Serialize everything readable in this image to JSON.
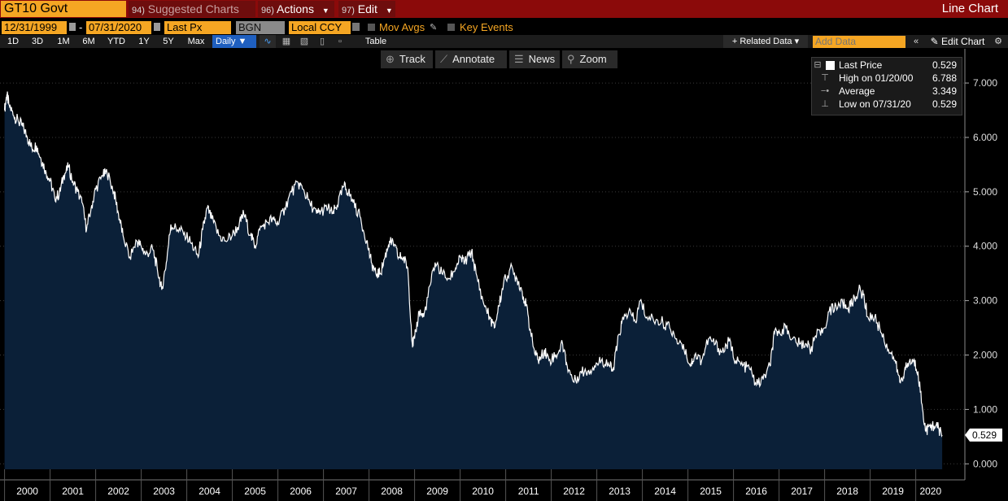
{
  "header": {
    "ticker": "GT10 Govt",
    "menus": [
      {
        "num": "94)",
        "label": "Suggested Charts",
        "dim": true
      },
      {
        "num": "96)",
        "label": "Actions"
      },
      {
        "num": "97)",
        "label": "Edit"
      }
    ],
    "chart_type": "Line Chart"
  },
  "controls": {
    "start_date": "12/31/1999",
    "end_date": "07/31/2020",
    "dash": "-",
    "field": "Last Px",
    "source": "BGN",
    "currency": "Local CCY",
    "mov_avgs": "Mov Avgs",
    "key_events": "Key Events"
  },
  "ranges": [
    "1D",
    "3D",
    "1M",
    "6M",
    "YTD",
    "1Y",
    "5Y",
    "Max"
  ],
  "periodicity": "Daily ▼",
  "table_label": "Table",
  "related_data": "+ Related Data ▾",
  "add_data_placeholder": "Add Data",
  "edit_chart": "Edit Chart",
  "toolbar": {
    "track": "Track",
    "annotate": "Annotate",
    "news": "News",
    "zoom": "Zoom"
  },
  "legend": {
    "last_label": "Last Price",
    "last_value": "0.529",
    "high_label": "High on 01/20/00",
    "high_value": "6.788",
    "avg_label": "Average",
    "avg_value": "3.349",
    "low_label": "Low on 07/31/20",
    "low_value": "0.529"
  },
  "colors": {
    "accent": "#f5a623",
    "title_bar": "#8b0a0a",
    "fill": "#0b2038",
    "line": "#ffffff",
    "background": "#000000"
  },
  "chart_data": {
    "type": "area",
    "title": "",
    "xlabel": "",
    "ylabel": "",
    "ylim": [
      -0.1,
      7.3
    ],
    "y_ticks": [
      "0.000",
      "1.000",
      "2.000",
      "3.000",
      "4.000",
      "5.000",
      "6.000",
      "7.000"
    ],
    "x_ticks": [
      "2000",
      "2001",
      "2002",
      "2003",
      "2004",
      "2005",
      "2006",
      "2007",
      "2008",
      "2009",
      "2010",
      "2011",
      "2012",
      "2013",
      "2014",
      "2015",
      "2016",
      "2017",
      "2018",
      "2019",
      "2020"
    ],
    "last_value_label": "0.529",
    "series": [
      {
        "values": [
          [
            2000.0,
            6.5
          ],
          [
            2000.05,
            6.788
          ],
          [
            2000.1,
            6.6
          ],
          [
            2000.2,
            6.4
          ],
          [
            2000.3,
            6.3
          ],
          [
            2000.4,
            6.2
          ],
          [
            2000.5,
            6.0
          ],
          [
            2000.6,
            5.8
          ],
          [
            2000.7,
            5.85
          ],
          [
            2000.8,
            5.6
          ],
          [
            2000.9,
            5.4
          ],
          [
            2001.0,
            5.2
          ],
          [
            2001.1,
            4.9
          ],
          [
            2001.2,
            4.95
          ],
          [
            2001.3,
            5.3
          ],
          [
            2001.4,
            5.45
          ],
          [
            2001.5,
            5.2
          ],
          [
            2001.6,
            5.0
          ],
          [
            2001.7,
            4.8
          ],
          [
            2001.8,
            4.3
          ],
          [
            2001.9,
            4.7
          ],
          [
            2002.0,
            5.05
          ],
          [
            2002.15,
            5.3
          ],
          [
            2002.25,
            5.35
          ],
          [
            2002.4,
            5.0
          ],
          [
            2002.5,
            4.6
          ],
          [
            2002.6,
            4.2
          ],
          [
            2002.75,
            3.8
          ],
          [
            2002.9,
            4.1
          ],
          [
            2003.0,
            4.0
          ],
          [
            2003.1,
            3.85
          ],
          [
            2003.25,
            3.95
          ],
          [
            2003.35,
            3.6
          ],
          [
            2003.45,
            3.2
          ],
          [
            2003.55,
            3.7
          ],
          [
            2003.65,
            4.4
          ],
          [
            2003.8,
            4.3
          ],
          [
            2003.95,
            4.25
          ],
          [
            2004.1,
            4.05
          ],
          [
            2004.25,
            3.8
          ],
          [
            2004.35,
            4.3
          ],
          [
            2004.45,
            4.7
          ],
          [
            2004.55,
            4.5
          ],
          [
            2004.7,
            4.2
          ],
          [
            2004.85,
            4.1
          ],
          [
            2005.0,
            4.2
          ],
          [
            2005.15,
            4.4
          ],
          [
            2005.25,
            4.6
          ],
          [
            2005.4,
            4.2
          ],
          [
            2005.5,
            4.0
          ],
          [
            2005.6,
            4.3
          ],
          [
            2005.75,
            4.45
          ],
          [
            2005.9,
            4.5
          ],
          [
            2006.0,
            4.4
          ],
          [
            2006.15,
            4.7
          ],
          [
            2006.3,
            5.0
          ],
          [
            2006.45,
            5.15
          ],
          [
            2006.55,
            5.05
          ],
          [
            2006.7,
            4.8
          ],
          [
            2006.85,
            4.6
          ],
          [
            2006.95,
            4.65
          ],
          [
            2007.1,
            4.7
          ],
          [
            2007.2,
            4.6
          ],
          [
            2007.3,
            4.75
          ],
          [
            2007.45,
            5.1
          ],
          [
            2007.55,
            5.0
          ],
          [
            2007.65,
            4.8
          ],
          [
            2007.8,
            4.55
          ],
          [
            2007.95,
            4.1
          ],
          [
            2008.05,
            3.7
          ],
          [
            2008.15,
            3.5
          ],
          [
            2008.25,
            3.5
          ],
          [
            2008.35,
            3.8
          ],
          [
            2008.45,
            4.1
          ],
          [
            2008.55,
            4.0
          ],
          [
            2008.65,
            3.8
          ],
          [
            2008.75,
            3.8
          ],
          [
            2008.85,
            3.6
          ],
          [
            2008.95,
            2.2
          ],
          [
            2009.0,
            2.3
          ],
          [
            2009.1,
            2.8
          ],
          [
            2009.2,
            2.7
          ],
          [
            2009.35,
            3.3
          ],
          [
            2009.45,
            3.7
          ],
          [
            2009.6,
            3.5
          ],
          [
            2009.75,
            3.4
          ],
          [
            2009.9,
            3.6
          ],
          [
            2010.0,
            3.8
          ],
          [
            2010.1,
            3.7
          ],
          [
            2010.25,
            3.9
          ],
          [
            2010.35,
            3.5
          ],
          [
            2010.5,
            3.0
          ],
          [
            2010.65,
            2.7
          ],
          [
            2010.75,
            2.5
          ],
          [
            2010.85,
            2.9
          ],
          [
            2010.95,
            3.3
          ],
          [
            2011.1,
            3.6
          ],
          [
            2011.25,
            3.4
          ],
          [
            2011.35,
            3.2
          ],
          [
            2011.45,
            2.9
          ],
          [
            2011.55,
            2.4
          ],
          [
            2011.65,
            2.0
          ],
          [
            2011.75,
            1.9
          ],
          [
            2011.85,
            2.1
          ],
          [
            2011.95,
            1.9
          ],
          [
            2012.1,
            2.0
          ],
          [
            2012.25,
            2.2
          ],
          [
            2012.35,
            1.8
          ],
          [
            2012.5,
            1.5
          ],
          [
            2012.65,
            1.7
          ],
          [
            2012.8,
            1.7
          ],
          [
            2012.95,
            1.8
          ],
          [
            2013.1,
            1.9
          ],
          [
            2013.25,
            1.85
          ],
          [
            2013.35,
            1.7
          ],
          [
            2013.45,
            2.2
          ],
          [
            2013.55,
            2.6
          ],
          [
            2013.7,
            2.8
          ],
          [
            2013.85,
            2.6
          ],
          [
            2013.95,
            3.0
          ],
          [
            2014.1,
            2.7
          ],
          [
            2014.3,
            2.65
          ],
          [
            2014.45,
            2.6
          ],
          [
            2014.6,
            2.5
          ],
          [
            2014.75,
            2.3
          ],
          [
            2014.9,
            2.2
          ],
          [
            2015.05,
            1.8
          ],
          [
            2015.15,
            2.0
          ],
          [
            2015.3,
            1.9
          ],
          [
            2015.45,
            2.3
          ],
          [
            2015.6,
            2.2
          ],
          [
            2015.75,
            2.05
          ],
          [
            2015.9,
            2.25
          ],
          [
            2016.05,
            1.9
          ],
          [
            2016.2,
            1.8
          ],
          [
            2016.35,
            1.75
          ],
          [
            2016.5,
            1.45
          ],
          [
            2016.65,
            1.55
          ],
          [
            2016.8,
            1.8
          ],
          [
            2016.9,
            2.4
          ],
          [
            2017.0,
            2.45
          ],
          [
            2017.15,
            2.5
          ],
          [
            2017.3,
            2.3
          ],
          [
            2017.45,
            2.2
          ],
          [
            2017.6,
            2.2
          ],
          [
            2017.7,
            2.1
          ],
          [
            2017.8,
            2.35
          ],
          [
            2017.95,
            2.4
          ],
          [
            2018.1,
            2.8
          ],
          [
            2018.25,
            2.9
          ],
          [
            2018.4,
            2.95
          ],
          [
            2018.5,
            2.85
          ],
          [
            2018.6,
            2.95
          ],
          [
            2018.75,
            3.2
          ],
          [
            2018.85,
            3.1
          ],
          [
            2018.95,
            2.7
          ],
          [
            2019.1,
            2.7
          ],
          [
            2019.25,
            2.4
          ],
          [
            2019.4,
            2.1
          ],
          [
            2019.55,
            1.9
          ],
          [
            2019.65,
            1.5
          ],
          [
            2019.75,
            1.7
          ],
          [
            2019.85,
            1.85
          ],
          [
            2019.95,
            1.9
          ],
          [
            2020.05,
            1.7
          ],
          [
            2020.15,
            1.0
          ],
          [
            2020.22,
            0.6
          ],
          [
            2020.3,
            0.7
          ],
          [
            2020.4,
            0.7
          ],
          [
            2020.5,
            0.65
          ],
          [
            2020.58,
            0.529
          ]
        ]
      }
    ]
  }
}
